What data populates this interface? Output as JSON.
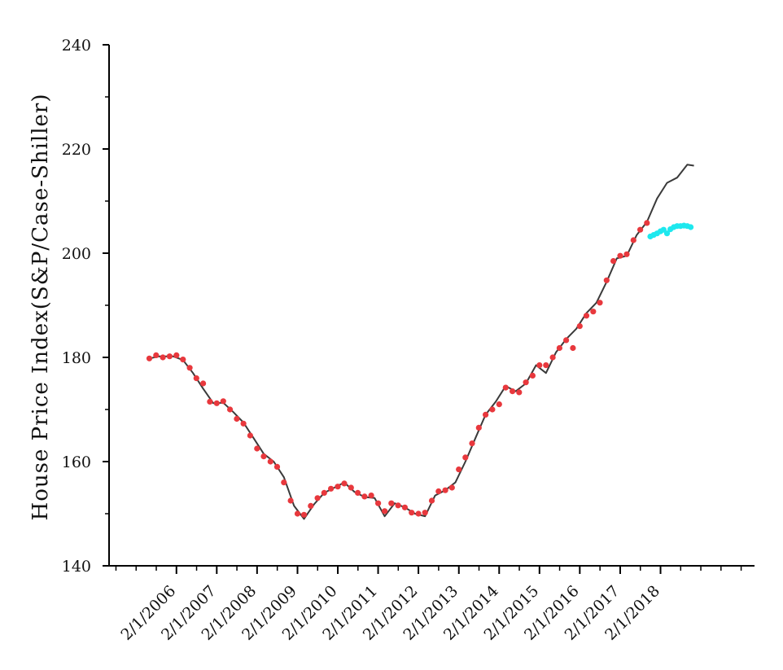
{
  "chart_data": {
    "type": "line",
    "title": "",
    "xlabel": "",
    "ylabel": "House Price Index(S&P/Case-Shiller)",
    "ylim": [
      140,
      240
    ],
    "yticks": [
      140,
      160,
      180,
      200,
      220,
      240
    ],
    "xlim": [
      "2004-06-01",
      "2020-06-01"
    ],
    "xticks": [
      "2/1/2006",
      "2/1/2007",
      "2/1/2008",
      "2/1/2009",
      "2/1/2010",
      "2/1/2011",
      "2/1/2012",
      "2/1/2013",
      "2/1/2014",
      "2/1/2015",
      "2/1/2016",
      "2/1/2017",
      "2/1/2018"
    ],
    "grid": false,
    "legend": "none",
    "series": [
      {
        "role": "actual",
        "style": "line",
        "color": "#3a3a3a",
        "points": [
          [
            "2005-06-01",
            179.8
          ],
          [
            "2005-09-01",
            180.2
          ],
          [
            "2006-01-01",
            180.2
          ],
          [
            "2006-04-01",
            179.5
          ],
          [
            "2006-07-01",
            177.0
          ],
          [
            "2006-10-01",
            174.0
          ],
          [
            "2007-01-01",
            171.2
          ],
          [
            "2007-04-01",
            171.3
          ],
          [
            "2007-07-01",
            169.5
          ],
          [
            "2007-10-01",
            167.5
          ],
          [
            "2008-01-01",
            164.5
          ],
          [
            "2008-04-01",
            161.5
          ],
          [
            "2008-07-01",
            160.0
          ],
          [
            "2008-10-01",
            157.0
          ],
          [
            "2009-01-01",
            151.5
          ],
          [
            "2009-04-01",
            149.0
          ],
          [
            "2009-07-01",
            151.8
          ],
          [
            "2009-10-01",
            154.0
          ],
          [
            "2010-01-01",
            155.0
          ],
          [
            "2010-04-01",
            156.0
          ],
          [
            "2010-07-01",
            154.2
          ],
          [
            "2010-10-01",
            153.2
          ],
          [
            "2011-01-01",
            153.0
          ],
          [
            "2011-04-01",
            149.5
          ],
          [
            "2011-07-01",
            152.0
          ],
          [
            "2011-10-01",
            151.2
          ],
          [
            "2012-01-01",
            150.0
          ],
          [
            "2012-04-01",
            149.5
          ],
          [
            "2012-07-01",
            153.5
          ],
          [
            "2012-10-01",
            154.5
          ],
          [
            "2013-01-01",
            156.0
          ],
          [
            "2013-04-01",
            160.0
          ],
          [
            "2013-07-01",
            164.5
          ],
          [
            "2013-10-01",
            169.0
          ],
          [
            "2014-01-01",
            171.5
          ],
          [
            "2014-04-01",
            174.5
          ],
          [
            "2014-07-01",
            173.5
          ],
          [
            "2014-10-01",
            175.0
          ],
          [
            "2015-01-01",
            178.5
          ],
          [
            "2015-04-01",
            177.0
          ],
          [
            "2015-07-01",
            181.0
          ],
          [
            "2015-10-01",
            183.5
          ],
          [
            "2016-01-01",
            185.5
          ],
          [
            "2016-04-01",
            188.5
          ],
          [
            "2016-07-01",
            190.5
          ],
          [
            "2016-10-01",
            194.5
          ],
          [
            "2017-01-01",
            199.0
          ],
          [
            "2017-04-01",
            199.5
          ],
          [
            "2017-07-01",
            203.5
          ],
          [
            "2017-10-01",
            206.0
          ],
          [
            "2018-01-01",
            210.5
          ],
          [
            "2018-04-01",
            213.5
          ],
          [
            "2018-07-01",
            214.5
          ],
          [
            "2018-10-01",
            217.0
          ],
          [
            "2018-12-01",
            216.8
          ]
        ]
      },
      {
        "role": "fitted",
        "style": "markers",
        "color": "#e8383d",
        "points": [
          [
            "2005-06-01",
            179.8
          ],
          [
            "2005-08-01",
            180.4
          ],
          [
            "2005-10-01",
            180.0
          ],
          [
            "2005-12-01",
            180.2
          ],
          [
            "2006-02-01",
            180.4
          ],
          [
            "2006-04-01",
            179.6
          ],
          [
            "2006-06-01",
            178.0
          ],
          [
            "2006-08-01",
            176.0
          ],
          [
            "2006-10-01",
            175.0
          ],
          [
            "2006-12-01",
            171.5
          ],
          [
            "2007-02-01",
            171.2
          ],
          [
            "2007-04-01",
            171.6
          ],
          [
            "2007-06-01",
            170.0
          ],
          [
            "2007-08-01",
            168.2
          ],
          [
            "2007-10-01",
            167.3
          ],
          [
            "2007-12-01",
            165.0
          ],
          [
            "2008-02-01",
            162.5
          ],
          [
            "2008-04-01",
            161.0
          ],
          [
            "2008-06-01",
            160.0
          ],
          [
            "2008-08-01",
            159.0
          ],
          [
            "2008-10-01",
            156.0
          ],
          [
            "2008-12-01",
            152.5
          ],
          [
            "2009-02-01",
            150.0
          ],
          [
            "2009-04-01",
            149.8
          ],
          [
            "2009-06-01",
            151.5
          ],
          [
            "2009-08-01",
            153.0
          ],
          [
            "2009-10-01",
            154.0
          ],
          [
            "2009-12-01",
            154.8
          ],
          [
            "2010-02-01",
            155.2
          ],
          [
            "2010-04-01",
            155.8
          ],
          [
            "2010-06-01",
            155.0
          ],
          [
            "2010-08-01",
            154.0
          ],
          [
            "2010-10-01",
            153.3
          ],
          [
            "2010-12-01",
            153.5
          ],
          [
            "2011-02-01",
            152.0
          ],
          [
            "2011-04-01",
            150.5
          ],
          [
            "2011-06-01",
            152.0
          ],
          [
            "2011-08-01",
            151.6
          ],
          [
            "2011-10-01",
            151.2
          ],
          [
            "2011-12-01",
            150.2
          ],
          [
            "2012-02-01",
            150.0
          ],
          [
            "2012-04-01",
            150.2
          ],
          [
            "2012-06-01",
            152.5
          ],
          [
            "2012-08-01",
            154.3
          ],
          [
            "2012-10-01",
            154.5
          ],
          [
            "2012-12-01",
            155.0
          ],
          [
            "2013-02-01",
            158.5
          ],
          [
            "2013-04-01",
            160.8
          ],
          [
            "2013-06-01",
            163.5
          ],
          [
            "2013-08-01",
            166.5
          ],
          [
            "2013-10-01",
            169.0
          ],
          [
            "2013-12-01",
            170.0
          ],
          [
            "2014-02-01",
            171.0
          ],
          [
            "2014-04-01",
            174.2
          ],
          [
            "2014-06-01",
            173.5
          ],
          [
            "2014-08-01",
            173.3
          ],
          [
            "2014-10-01",
            175.2
          ],
          [
            "2014-12-01",
            176.5
          ],
          [
            "2015-02-01",
            178.5
          ],
          [
            "2015-04-01",
            178.5
          ],
          [
            "2015-06-01",
            180.0
          ],
          [
            "2015-08-01",
            181.8
          ],
          [
            "2015-10-01",
            183.3
          ],
          [
            "2015-12-01",
            181.8
          ],
          [
            "2016-02-01",
            186.0
          ],
          [
            "2016-04-01",
            188.0
          ],
          [
            "2016-06-01",
            188.8
          ],
          [
            "2016-08-01",
            190.5
          ],
          [
            "2016-10-01",
            194.8
          ],
          [
            "2016-12-01",
            198.5
          ],
          [
            "2017-02-01",
            199.5
          ],
          [
            "2017-04-01",
            199.8
          ],
          [
            "2017-06-01",
            202.5
          ],
          [
            "2017-08-01",
            204.5
          ],
          [
            "2017-10-01",
            205.8
          ]
        ]
      },
      {
        "role": "forecast",
        "style": "markers",
        "color": "#1ee8ee",
        "points": [
          [
            "2017-11-01",
            203.2
          ],
          [
            "2017-12-01",
            203.5
          ],
          [
            "2018-01-01",
            203.8
          ],
          [
            "2018-02-01",
            204.2
          ],
          [
            "2018-03-01",
            204.5
          ],
          [
            "2018-04-01",
            203.8
          ],
          [
            "2018-05-01",
            204.6
          ],
          [
            "2018-06-01",
            205.0
          ],
          [
            "2018-07-01",
            205.2
          ],
          [
            "2018-08-01",
            205.2
          ],
          [
            "2018-09-01",
            205.3
          ],
          [
            "2018-10-01",
            205.2
          ],
          [
            "2018-11-01",
            205.0
          ]
        ]
      }
    ]
  }
}
